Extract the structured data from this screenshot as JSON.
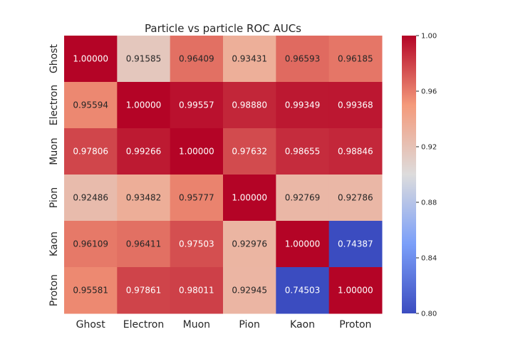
{
  "chart_data": {
    "type": "heatmap",
    "title": "Particle vs particle ROC AUCs",
    "x_labels": [
      "Ghost",
      "Electron",
      "Muon",
      "Pion",
      "Kaon",
      "Proton"
    ],
    "y_labels": [
      "Ghost",
      "Electron",
      "Muon",
      "Pion",
      "Kaon",
      "Proton"
    ],
    "values": [
      [
        1.0,
        0.91585,
        0.96409,
        0.93431,
        0.96593,
        0.96185
      ],
      [
        0.95594,
        1.0,
        0.99557,
        0.9888,
        0.99349,
        0.99368
      ],
      [
        0.97806,
        0.99266,
        1.0,
        0.97632,
        0.98655,
        0.98846
      ],
      [
        0.92486,
        0.93482,
        0.95777,
        1.0,
        0.92769,
        0.92786
      ],
      [
        0.96109,
        0.96411,
        0.97503,
        0.92976,
        1.0,
        0.74387
      ],
      [
        0.95581,
        0.97861,
        0.98011,
        0.92945,
        0.74503,
        1.0
      ]
    ],
    "cell_labels": [
      [
        "1.00000",
        "0.91585",
        "0.96409",
        "0.93431",
        "0.96593",
        "0.96185"
      ],
      [
        "0.95594",
        "1.00000",
        "0.99557",
        "0.98880",
        "0.99349",
        "0.99368"
      ],
      [
        "0.97806",
        "0.99266",
        "1.00000",
        "0.97632",
        "0.98655",
        "0.98846"
      ],
      [
        "0.92486",
        "0.93482",
        "0.95777",
        "1.00000",
        "0.92769",
        "0.92786"
      ],
      [
        "0.96109",
        "0.96411",
        "0.97503",
        "0.92976",
        "1.00000",
        "0.74387"
      ],
      [
        "0.95581",
        "0.97861",
        "0.98011",
        "0.92945",
        "0.74503",
        "1.00000"
      ]
    ],
    "colormap": "coolwarm",
    "colorbar": {
      "range": [
        0.8,
        1.0
      ],
      "ticks": [
        "0.80",
        "0.84",
        "0.88",
        "0.92",
        "0.96",
        "1.00"
      ]
    },
    "grid": false
  }
}
